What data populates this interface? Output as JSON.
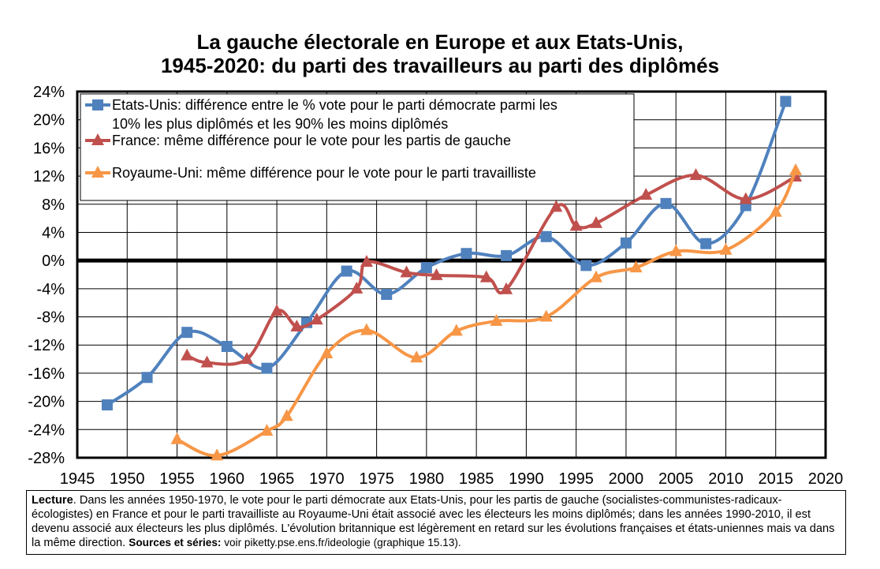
{
  "title": {
    "line1": "La gauche électorale en Europe et aux Etats-Unis,",
    "line2": "1945-2020: du parti des travailleurs au parti des diplômés"
  },
  "colors": {
    "usa": "#4F81BD",
    "france": "#C0504D",
    "uk": "#F79646"
  },
  "chart_data": {
    "type": "line",
    "title": "La gauche électorale en Europe et aux Etats-Unis, 1945-2020: du parti des travailleurs au parti des diplômés",
    "xlim": [
      1945,
      2020
    ],
    "ylim": [
      -28,
      24
    ],
    "x_ticks": [
      "1945",
      "1950",
      "1955",
      "1960",
      "1965",
      "1970",
      "1975",
      "1980",
      "1985",
      "1990",
      "1995",
      "2000",
      "2005",
      "2010",
      "2015",
      "2020"
    ],
    "y_ticks": [
      "24%",
      "20%",
      "16%",
      "12%",
      "8%",
      "4%",
      "0%",
      "-4%",
      "-8%",
      "-12%",
      "-16%",
      "-20%",
      "-24%",
      "-28%"
    ],
    "grid": true,
    "legend_position": "top-left",
    "series": [
      {
        "name": "Etats-Unis: différence entre le % vote pour le parti démocrate parmi les 10% les plus diplômés et les 90% les moins diplômés",
        "legend_lines": [
          "Etats-Unis: différence entre le % vote pour le parti démocrate parmi les",
          "10% les plus diplômés et les 90% les moins diplômés"
        ],
        "marker": "square",
        "x": [
          1948,
          1952,
          1956,
          1960,
          1964,
          1968,
          1972,
          1976,
          1980,
          1984,
          1988,
          1992,
          1996,
          2000,
          2004,
          2008,
          2012,
          2016
        ],
        "y": [
          -20.5,
          -16.6,
          -10.2,
          -12.2,
          -15.3,
          -8.8,
          -1.5,
          -4.8,
          -1.0,
          1.0,
          0.7,
          3.4,
          -0.7,
          2.5,
          8.1,
          2.4,
          7.8,
          22.6
        ]
      },
      {
        "name": "France: même différence pour le vote pour les partis de gauche",
        "legend_lines": [
          "France: même différence pour le vote pour les partis de gauche"
        ],
        "marker": "triangle",
        "x": [
          1956,
          1958,
          1962,
          1965,
          1967,
          1969,
          1973,
          1974,
          1978,
          1981,
          1986,
          1988,
          1993,
          1995,
          1997,
          2002,
          2007,
          2012,
          2017
        ],
        "y": [
          -13.5,
          -14.5,
          -14.0,
          -7.2,
          -9.4,
          -8.4,
          -4.0,
          -0.2,
          -1.7,
          -2.1,
          -2.4,
          -4.1,
          7.6,
          4.9,
          5.3,
          9.3,
          12.1,
          8.7,
          11.9
        ]
      },
      {
        "name": "Royaume-Uni: même différence pour le vote pour le parti travailliste",
        "legend_lines": [
          "Royaume-Uni: même différence pour le vote pour le parti travailliste"
        ],
        "marker": "triangle",
        "x": [
          1955,
          1959,
          1964,
          1966,
          1970,
          1974,
          1979,
          1983,
          1987,
          1992,
          1997,
          2001,
          2005,
          2010,
          2015,
          2017
        ],
        "y": [
          -25.4,
          -27.7,
          -24.2,
          -22.1,
          -13.2,
          -9.9,
          -13.8,
          -10.0,
          -8.6,
          -8.0,
          -2.4,
          -1.0,
          1.3,
          1.5,
          6.9,
          12.8
        ]
      }
    ]
  },
  "note": {
    "label": "Lecture",
    "text": ". Dans les années 1950-1970, le vote pour le parti démocrate aux Etats-Unis, pour les partis de gauche (socialistes-communistes-radicaux-écologistes) en France et pour le parti travailliste au Royaume-Uni était associé avec les électeurs les moins diplômés; dans les années 1990-2010, il est devenu associé aux électeurs les plus diplômés. L'évolution britannique est légèrement en retard sur les évolutions françaises et états-uniennes mais va dans la même direction. ",
    "sources_label": "Sources et séries:",
    "sources_text": " voir piketty.pse.ens.fr/ideologie (graphique 15.13)."
  }
}
